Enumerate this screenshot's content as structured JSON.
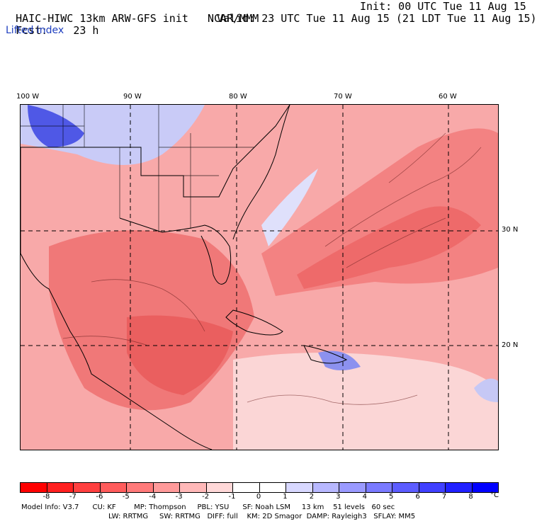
{
  "header": {
    "title_left": "HAIC-HIWC 13km ARW-GFS init",
    "title_org": "NCAR/MMM",
    "init": "Init: 00 UTC Tue 11 Aug 15",
    "fcst_label": "Fcst:",
    "fcst_value": "23 h",
    "valid": "Valid: 23 UTC Tue 11 Aug 15 (21 LDT Tue 11 Aug 15)",
    "field": "Lifted index"
  },
  "map": {
    "lon_labels": [
      "100 W",
      "90 W",
      "80 W",
      "70 W",
      "60 W"
    ],
    "lat_labels": [
      "30 N",
      "20 N"
    ],
    "colorbar_labels": [
      "-8",
      "-7",
      "-6",
      "-5",
      "-4",
      "-3",
      "-2",
      "-1",
      "0",
      "1",
      "2",
      "3",
      "4",
      "5",
      "6",
      "7",
      "8"
    ],
    "colorbar_unit": "°C",
    "colorbar_colors": [
      "#ff0000",
      "#ff2020",
      "#ff4040",
      "#ff5c5c",
      "#ff7a7a",
      "#ff9a9a",
      "#ffb8b8",
      "#ffd8d8",
      "#ffffff",
      "#ffffff",
      "#d8d8ff",
      "#b8b8ff",
      "#9a9aff",
      "#7a7aff",
      "#5c5cff",
      "#4040ff",
      "#2020ff",
      "#0000ff"
    ]
  },
  "model_info": {
    "line1": "Model Info: V3.7      CU: KF        MP: Thompson     PBL: YSU      SF: Noah LSM     13 km    51 levels   60 sec",
    "line2": "LW: RRTMG     SW: RRTMG   DIFF: full    KM: 2D Smagor  DAMP: Rayleigh3   SFLAY: MM5"
  }
}
